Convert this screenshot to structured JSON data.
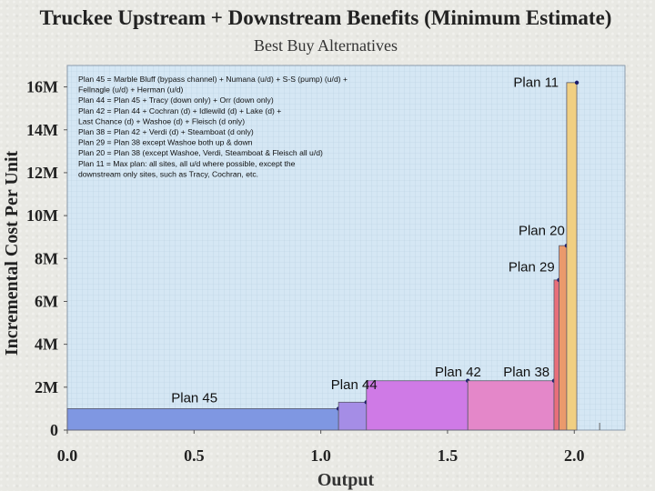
{
  "chart_data": {
    "type": "bar",
    "title": "Truckee Upstream + Downstream Benefits (Minimum Estimate)",
    "subtitle": "Best Buy Alternatives",
    "xlabel": "Output",
    "ylabel": "Incremental Cost Per Unit",
    "xlim": [
      0,
      2.2
    ],
    "ylim": [
      0,
      17
    ],
    "x_ticks": [
      {
        "value": 0.0,
        "label": "0.0"
      },
      {
        "value": 0.5,
        "label": "0.5"
      },
      {
        "value": 1.0,
        "label": "1.0"
      },
      {
        "value": 1.5,
        "label": "1.5"
      },
      {
        "value": 2.0,
        "label": "2.0"
      }
    ],
    "y_ticks": [
      {
        "value": 0,
        "label": "0"
      },
      {
        "value": 2,
        "label": "2M"
      },
      {
        "value": 4,
        "label": "4M"
      },
      {
        "value": 6,
        "label": "6M"
      },
      {
        "value": 8,
        "label": "8M"
      },
      {
        "value": 10,
        "label": "10M"
      },
      {
        "value": 12,
        "label": "12M"
      },
      {
        "value": 14,
        "label": "14M"
      },
      {
        "value": 16,
        "label": "16M"
      }
    ],
    "grid": true,
    "bars": [
      {
        "x0": 0.0,
        "x1": 1.07,
        "y": 1.0,
        "color": "#7f97e2"
      },
      {
        "x0": 1.07,
        "x1": 1.18,
        "y": 1.3,
        "color": "#a58de6"
      },
      {
        "x0": 1.18,
        "x1": 1.58,
        "y": 2.3,
        "color": "#cf7ae6"
      },
      {
        "x0": 1.58,
        "x1": 1.92,
        "y": 2.3,
        "color": "#e487c9"
      },
      {
        "x0": 1.92,
        "x1": 1.94,
        "y": 7.0,
        "color": "#e86f7a"
      },
      {
        "x0": 1.94,
        "x1": 1.97,
        "y": 8.6,
        "color": "#ea9a6c"
      },
      {
        "x0": 1.97,
        "x1": 2.01,
        "y": 16.2,
        "color": "#f0cf82"
      }
    ],
    "annotations": [
      {
        "text": "Plan 45",
        "x": 0.41,
        "y": 1.3
      },
      {
        "text": "Plan 44",
        "x": 1.04,
        "y": 1.9
      },
      {
        "text": "Plan 42",
        "x": 1.45,
        "y": 2.5
      },
      {
        "text": "Plan 38",
        "x": 1.72,
        "y": 2.5
      },
      {
        "text": "Plan 29",
        "x": 1.74,
        "y": 7.4
      },
      {
        "text": "Plan 20",
        "x": 1.78,
        "y": 9.1
      },
      {
        "text": "Plan 11",
        "x": 1.76,
        "y": 16.0
      }
    ],
    "legend": [
      "Plan 45 = Marble Bluff (bypass channel) + Numana (u/d) + S-S (pump) (u/d) +",
      "Fellnagle (u/d) + Herman (u/d)",
      "Plan 44 = Plan 45 + Tracy (down only) + Orr (down only)",
      "Plan 42 = Plan 44 + Cochran (d) + Idlewild (d) + Lake (d) +",
      "Last Chance (d) + Washoe (d) + Fleisch (d only)",
      "Plan 38 = Plan 42 + Verdi (d) + Steamboat (d only)",
      "Plan 29 = Plan 38 except Washoe both up & down",
      "Plan 20 = Plan 38 (except Washoe, Verdi, Steamboat & Fleisch all u/d)",
      "Plan 11 = Max plan: all sites, all u/d where possible, except the",
      "downstream only sites, such as Tracy, Cochran, etc."
    ],
    "legend_placement": "top-left"
  }
}
